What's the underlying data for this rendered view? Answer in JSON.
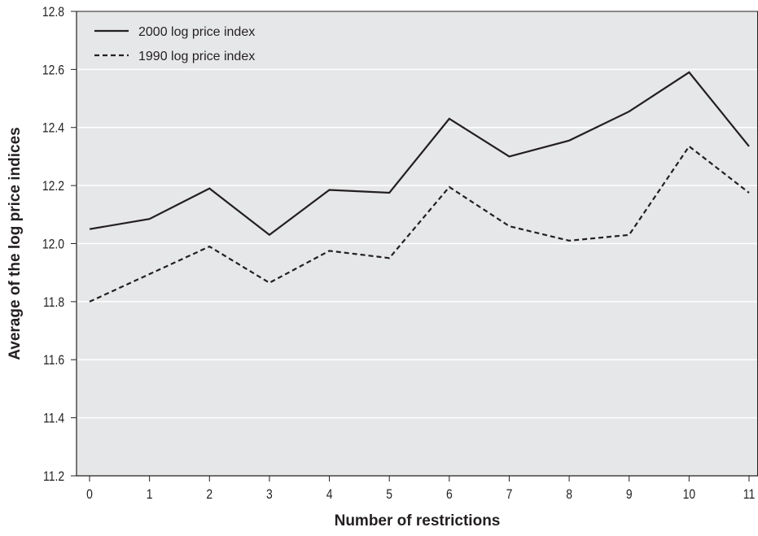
{
  "chart_data": {
    "type": "line",
    "title": "",
    "xlabel": "Number of restrictions",
    "ylabel": "Average of the log price indices",
    "x": [
      0,
      1,
      2,
      3,
      4,
      5,
      6,
      7,
      8,
      9,
      10,
      11
    ],
    "xticks": [
      "0",
      "1",
      "2",
      "3",
      "4",
      "5",
      "6",
      "7",
      "8",
      "9",
      "10",
      "11"
    ],
    "yticks": [
      "11.2",
      "11.4",
      "11.6",
      "11.8",
      "12.0",
      "12.2",
      "12.4",
      "12.6",
      "12.8"
    ],
    "ylim": [
      11.2,
      12.8
    ],
    "grid": "horizontal",
    "legend_position": "top-left",
    "colors": {
      "plot_background": "#e6e7e8",
      "gridline": "#ffffff",
      "line": "#231f20"
    },
    "series": [
      {
        "name": "2000 log price index",
        "style": "solid",
        "values": [
          12.05,
          12.085,
          12.19,
          12.03,
          12.185,
          12.175,
          12.43,
          12.3,
          12.355,
          12.455,
          12.59,
          12.335
        ]
      },
      {
        "name": "1990 log price index",
        "style": "dashed",
        "values": [
          11.8,
          11.895,
          11.99,
          11.865,
          11.975,
          11.95,
          12.195,
          12.06,
          12.01,
          12.03,
          12.335,
          12.175
        ]
      }
    ]
  }
}
